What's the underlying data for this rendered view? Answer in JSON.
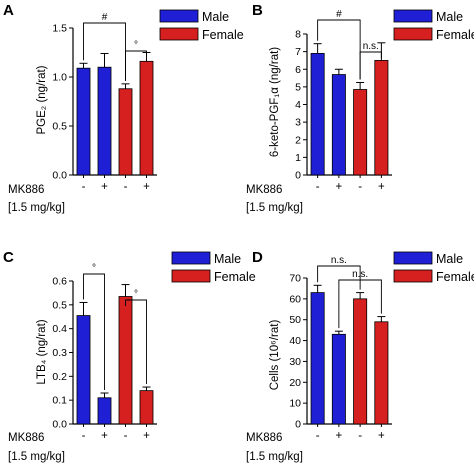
{
  "colors": {
    "male": "#1f1fd6",
    "female": "#d61f1f"
  },
  "legend": {
    "male": "Male",
    "female": "Female"
  },
  "treatment": {
    "label": "MK886",
    "dose": "[1.5 mg/kg]",
    "levels": [
      "-",
      "+",
      "-",
      "+"
    ]
  },
  "chart_data": [
    {
      "panel": "A",
      "type": "bar",
      "ylabel": "PGE₂ (ng/rat)",
      "ylim": [
        0,
        1.5
      ],
      "yticks": [
        "0.0",
        "0.5",
        "1.0",
        "1.5"
      ],
      "bars": [
        {
          "group": "Male",
          "mk886": "-",
          "value": 1.09,
          "error": 0.05
        },
        {
          "group": "Male",
          "mk886": "+",
          "value": 1.1,
          "error": 0.14
        },
        {
          "group": "Female",
          "mk886": "-",
          "value": 0.88,
          "error": 0.05
        },
        {
          "group": "Female",
          "mk886": "+",
          "value": 1.16,
          "error": 0.09
        }
      ],
      "annotations": [
        {
          "label": "#",
          "from": 0,
          "to": 2
        },
        {
          "label": "°",
          "from": 2,
          "to": 3
        }
      ]
    },
    {
      "panel": "B",
      "type": "bar",
      "ylabel": "6-keto-PGF₁α (ng/rat)",
      "ylim": [
        0,
        8
      ],
      "yticks": [
        "0",
        "1",
        "2",
        "3",
        "4",
        "5",
        "6",
        "7",
        "8"
      ],
      "bars": [
        {
          "group": "Male",
          "mk886": "-",
          "value": 6.9,
          "error": 0.55
        },
        {
          "group": "Male",
          "mk886": "+",
          "value": 5.7,
          "error": 0.3
        },
        {
          "group": "Female",
          "mk886": "-",
          "value": 4.85,
          "error": 0.4
        },
        {
          "group": "Female",
          "mk886": "+",
          "value": 6.5,
          "error": 1.0
        }
      ],
      "annotations": [
        {
          "label": "#",
          "from": 0,
          "to": 2
        },
        {
          "label": "n.s.",
          "from": 2,
          "to": 3
        }
      ]
    },
    {
      "panel": "C",
      "type": "bar",
      "ylabel": "LTB₄ (ng/rat)",
      "ylim": [
        0,
        0.6
      ],
      "yticks": [
        "0.0",
        "0.1",
        "0.2",
        "0.3",
        "0.4",
        "0.5",
        "0.6"
      ],
      "bars": [
        {
          "group": "Male",
          "mk886": "-",
          "value": 0.455,
          "error": 0.055
        },
        {
          "group": "Male",
          "mk886": "+",
          "value": 0.11,
          "error": 0.02
        },
        {
          "group": "Female",
          "mk886": "-",
          "value": 0.535,
          "error": 0.05
        },
        {
          "group": "Female",
          "mk886": "+",
          "value": 0.14,
          "error": 0.015
        }
      ],
      "annotations": [
        {
          "label": "°",
          "from": 0,
          "to": 1
        },
        {
          "label": "°",
          "from": 2,
          "to": 3
        }
      ]
    },
    {
      "panel": "D",
      "type": "bar",
      "ylabel": "Cells (10⁶/rat)",
      "ylim": [
        0,
        70
      ],
      "yticks": [
        "0",
        "10",
        "20",
        "30",
        "40",
        "50",
        "60",
        "70"
      ],
      "bars": [
        {
          "group": "Male",
          "mk886": "-",
          "value": 63,
          "error": 3.5
        },
        {
          "group": "Male",
          "mk886": "+",
          "value": 43,
          "error": 1.5
        },
        {
          "group": "Female",
          "mk886": "-",
          "value": 60,
          "error": 3
        },
        {
          "group": "Female",
          "mk886": "+",
          "value": 49,
          "error": 2.5
        }
      ],
      "annotations": [
        {
          "label": "n.s.",
          "from": 0,
          "to": 2
        },
        {
          "label": "n.s.",
          "from": 1,
          "to": 3
        }
      ]
    }
  ]
}
